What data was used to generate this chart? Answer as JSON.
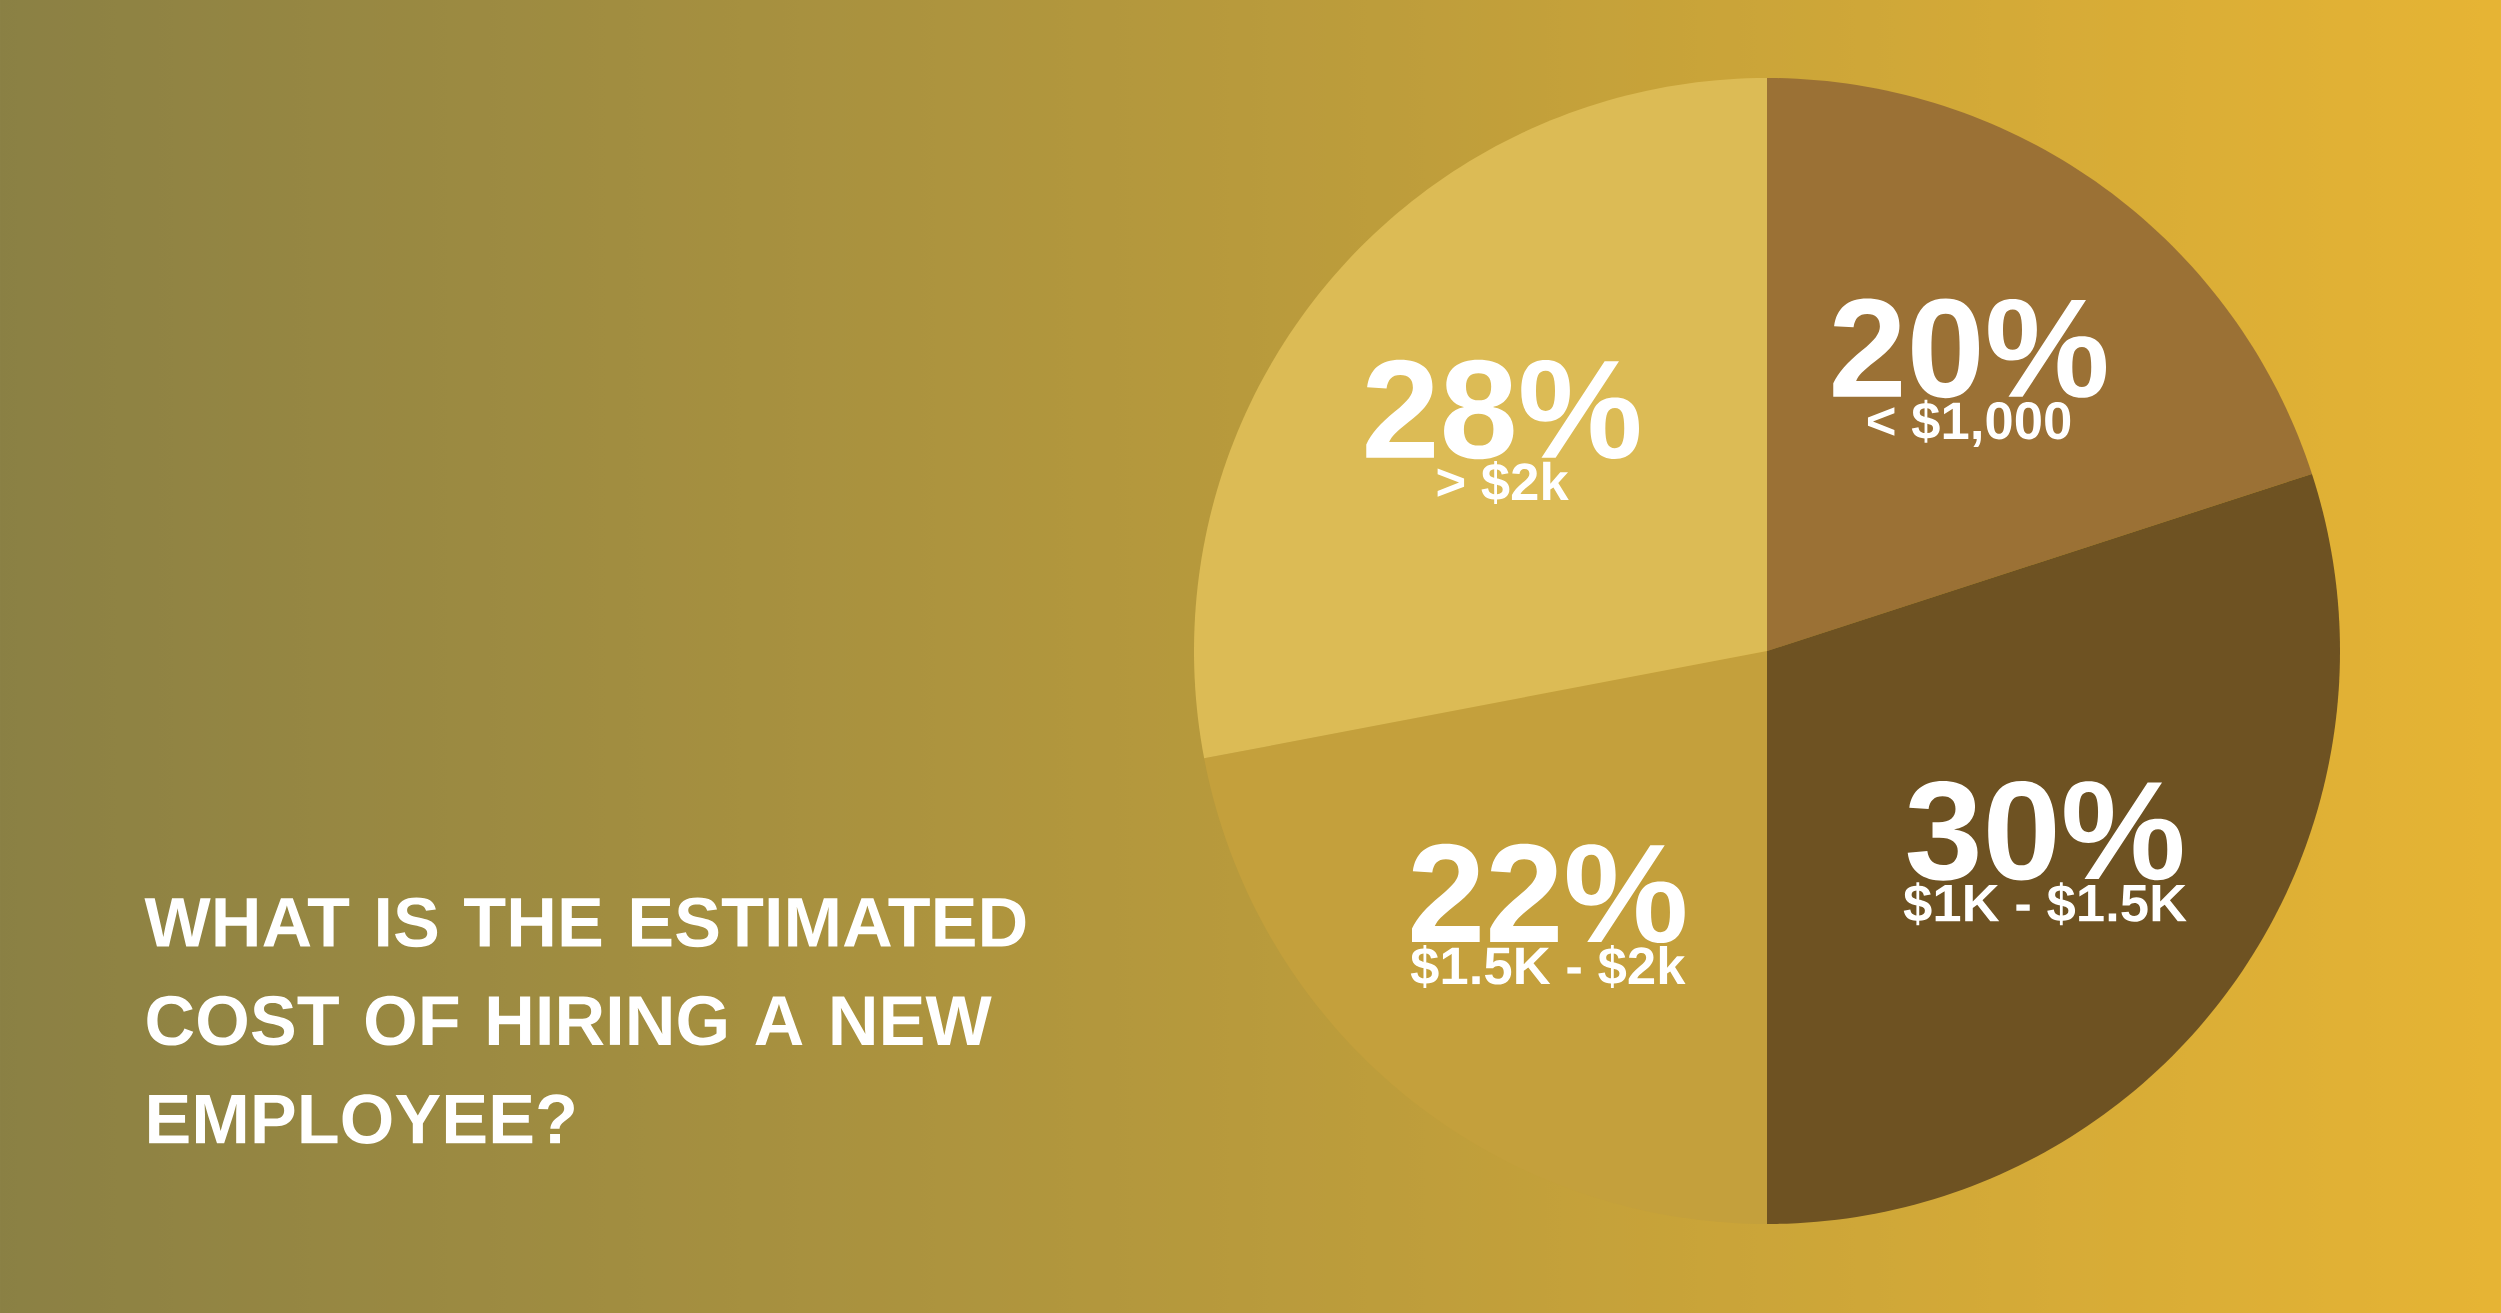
{
  "chart_data": {
    "type": "pie",
    "title": "WHAT IS THE ESTIMATED COST OF HIRING A NEW EMPLOYEE?",
    "categories": [
      "< $1,000",
      "$1K - $1.5K",
      "$1.5K - $2k",
      "> $2k"
    ],
    "values": [
      20,
      30,
      22,
      28
    ],
    "value_labels": [
      "20%",
      "30%",
      "22%",
      "28%"
    ],
    "colors": [
      "#9b7135",
      "#6e5222",
      "#c4a03c",
      "#dcbb55"
    ]
  }
}
